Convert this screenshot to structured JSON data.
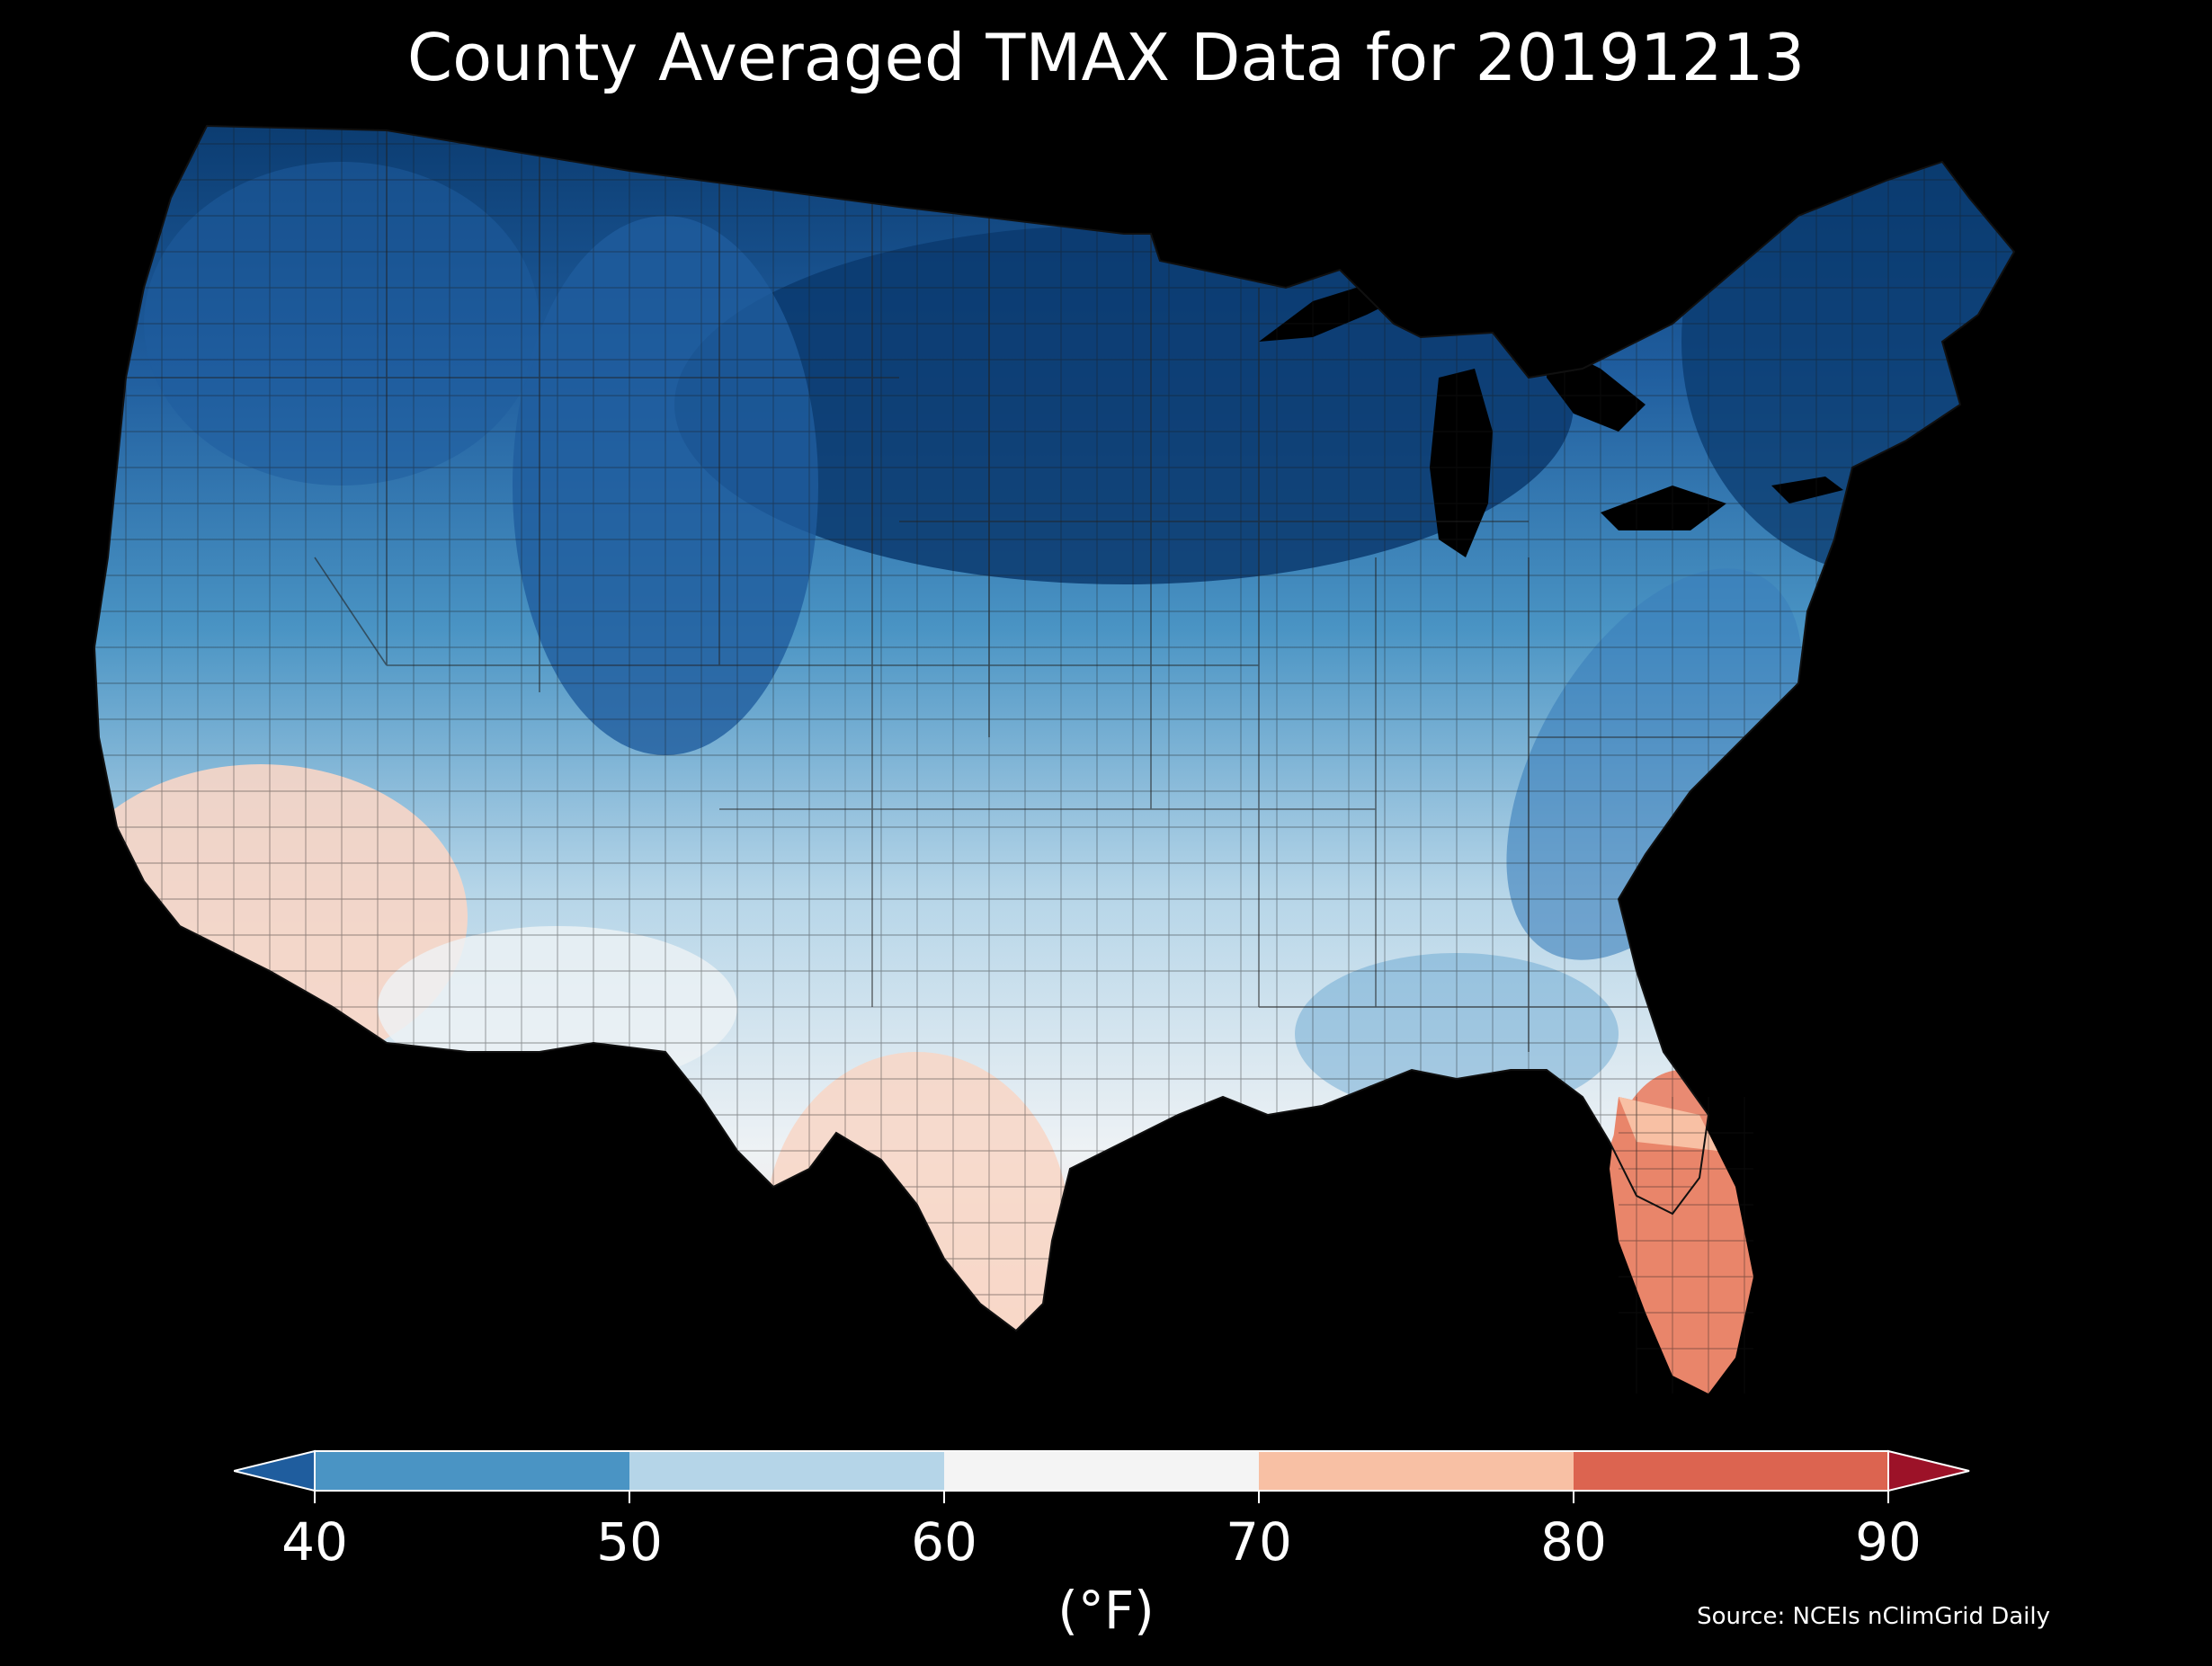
{
  "title": "County Averaged TMAX Data for 20191213",
  "colorbar": {
    "label": "(°F)",
    "ticks": [
      "40",
      "50",
      "60",
      "70",
      "80",
      "90"
    ],
    "bins": [
      {
        "range": "<40",
        "color": "#1f5d9e"
      },
      {
        "range": "40-50",
        "color": "#4a94c4"
      },
      {
        "range": "50-60",
        "color": "#b5d5e8"
      },
      {
        "range": "60-70",
        "color": "#f4f4f4"
      },
      {
        "range": "70-80",
        "color": "#f8c0a4"
      },
      {
        "range": "80-90",
        "color": "#dc6450"
      },
      {
        "range": ">90",
        "color": "#9c1228"
      }
    ]
  },
  "source": "Source: NCEIs nClimGrid Daily",
  "map_colors": {
    "very_cold": "#0a3a6e",
    "cold": "#1f5d9e",
    "cool": "#4a94c4",
    "mild": "#b5d5e8",
    "neutral": "#eef2f5",
    "warm": "#f8d6c6",
    "hot": "#e9856a",
    "background": "#000000"
  }
}
